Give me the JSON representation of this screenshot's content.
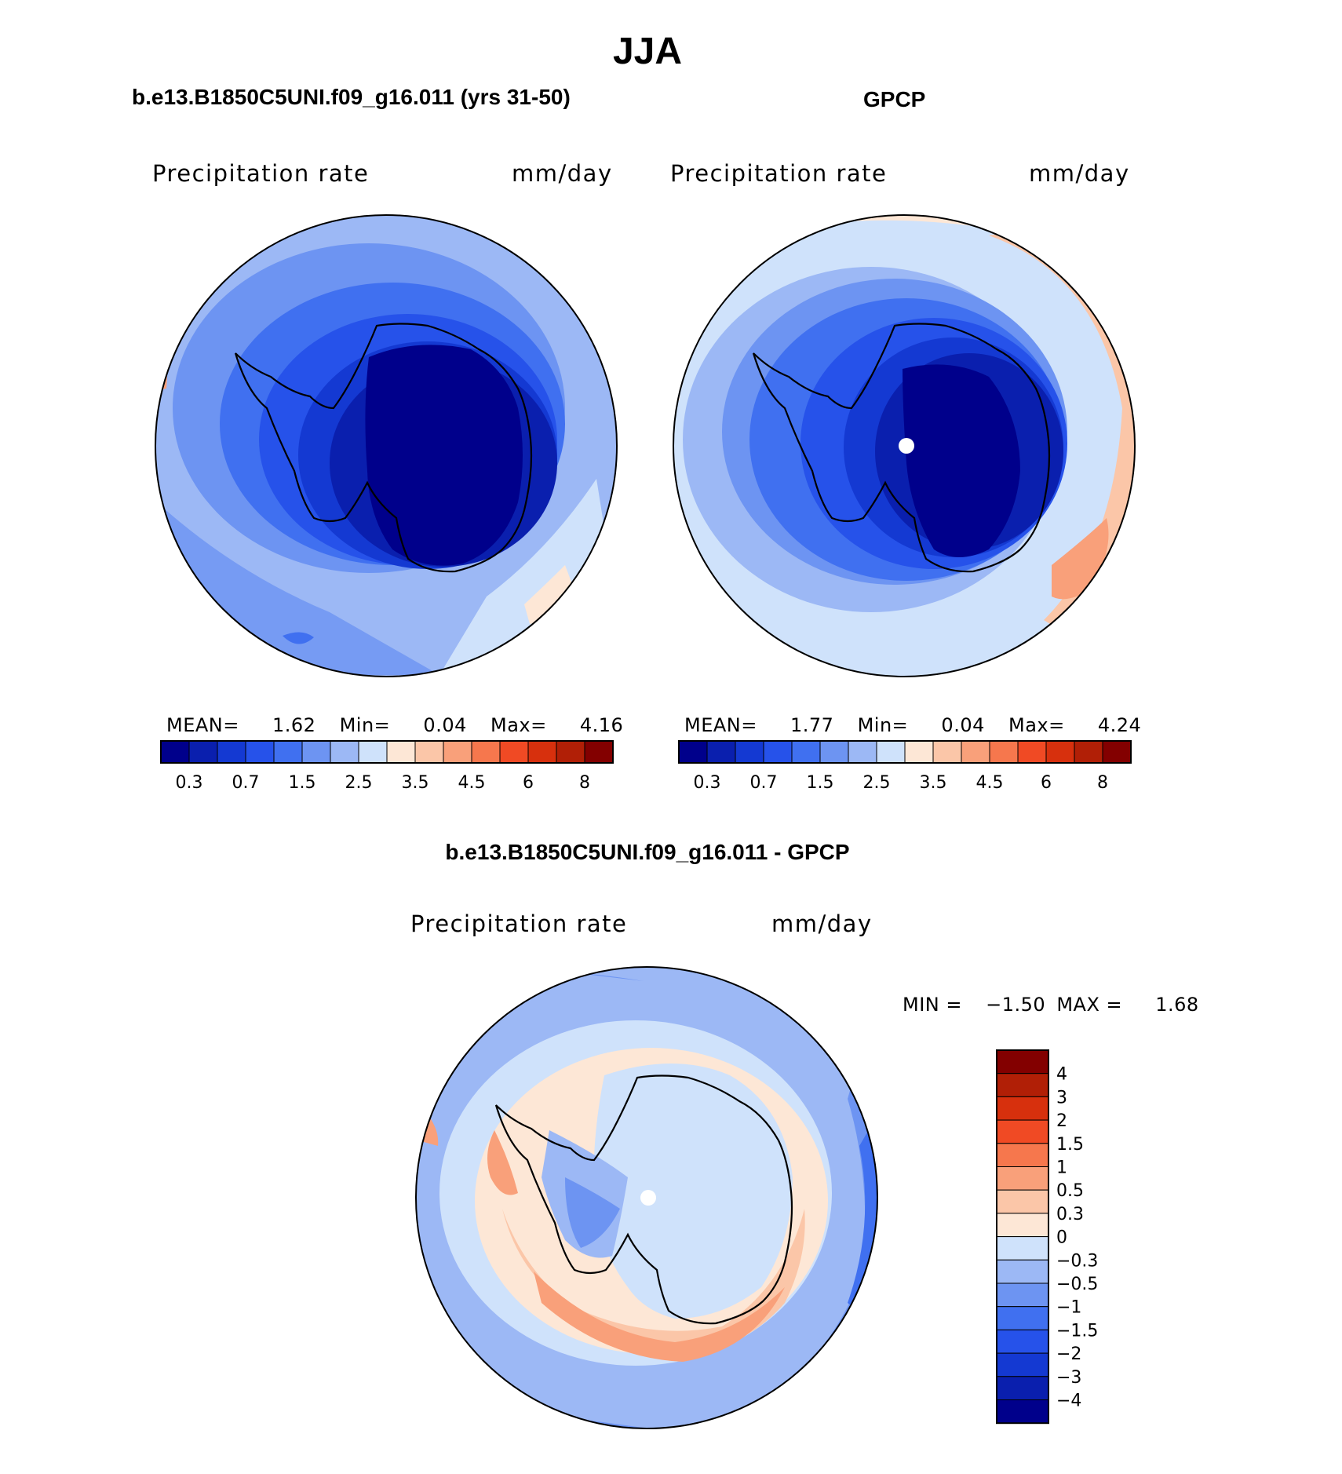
{
  "figure": {
    "title": "JJA"
  },
  "panels": [
    {
      "id": "model",
      "title": "b.e13.B1850C5UNI.f09_g16.011 (yrs 31-50)",
      "variable": "Precipitation rate",
      "units": "mm/day",
      "stats": {
        "mean_label": "MEAN=",
        "mean": "1.62",
        "min_label": "Min=",
        "min": "0.04",
        "max_label": "Max=",
        "max": "4.16"
      }
    },
    {
      "id": "obs",
      "title": "GPCP",
      "variable": "Precipitation rate",
      "units": "mm/day",
      "stats": {
        "mean_label": "MEAN=",
        "mean": "1.77",
        "min_label": "Min=",
        "min": "0.04",
        "max_label": "Max=",
        "max": "4.24"
      }
    },
    {
      "id": "diff",
      "title": "b.e13.B1850C5UNI.f09_g16.011 - GPCP",
      "variable": "Precipitation rate",
      "units": "mm/day",
      "stats": {
        "min_label": "MIN =",
        "min": "−1.50",
        "max_label": "MAX =",
        "max": "1.68"
      }
    }
  ],
  "colorbars": {
    "absolute": {
      "orientation": "horizontal",
      "colors": [
        "#00008b",
        "#0a1fae",
        "#1439d2",
        "#2652ea",
        "#4070f0",
        "#6d94f2",
        "#9cb8f5",
        "#cfe2fb",
        "#fde7d6",
        "#fbc6a8",
        "#f9a07a",
        "#f6774d",
        "#f04a24",
        "#d7300d",
        "#b11f06",
        "#830000"
      ],
      "tick_labels": [
        "0.3",
        "0.7",
        "1.5",
        "2.5",
        "3.5",
        "4.5",
        "6",
        "8"
      ]
    },
    "difference": {
      "orientation": "vertical",
      "colors_top_to_bottom": [
        "#830000",
        "#b11f06",
        "#d7300d",
        "#f04a24",
        "#f6774d",
        "#f9a07a",
        "#fbc6a8",
        "#fde7d6",
        "#cfe2fb",
        "#9cb8f5",
        "#6d94f2",
        "#4070f0",
        "#2652ea",
        "#1439d2",
        "#0a1fae",
        "#00008b"
      ],
      "tick_labels": [
        "4",
        "3",
        "2",
        "1.5",
        "1",
        "0.5",
        "0.3",
        "0",
        "−0.3",
        "−0.5",
        "−1",
        "−1.5",
        "−2",
        "−3",
        "−4"
      ]
    }
  },
  "map": {
    "projection": "south polar stereographic",
    "region": "Antarctica / Southern Ocean",
    "missing_pole_marker_color": "#ffffff"
  }
}
